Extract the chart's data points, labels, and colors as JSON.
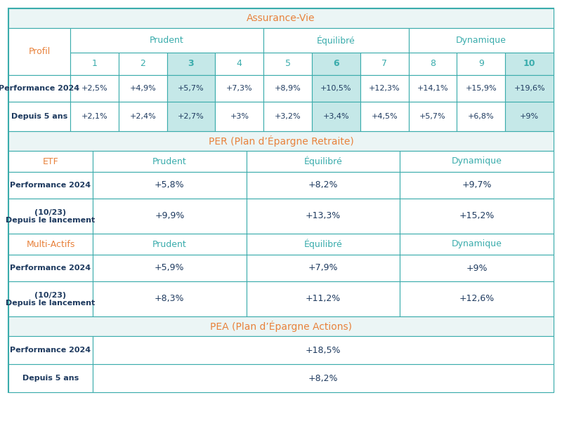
{
  "title_av": "Assurance-Vie",
  "title_per": "PER (Plan d’Épargne Retraite)",
  "title_pea": "PEA (Plan d’Épargne Actions)",
  "color_orange": "#E8823C",
  "color_teal": "#3AACAC",
  "color_navy": "#1E3A5F",
  "color_light_teal_bg": "#C5E8E8",
  "color_section_bg": "#EBF5F5",
  "color_border": "#3AACAC",
  "color_white": "#FFFFFF",
  "av_profils": [
    "1",
    "2",
    "3",
    "4",
    "5",
    "6",
    "7",
    "8",
    "9",
    "10"
  ],
  "av_perf2024": [
    "+2,5%",
    "+4,9%",
    "+5,7%",
    "+7,3%",
    "+8,9%",
    "+10,5%",
    "+12,3%",
    "+14,1%",
    "+15,9%",
    "+19,6%"
  ],
  "av_depuis5ans": [
    "+2,1%",
    "+2,4%",
    "+2,7%",
    "+3%",
    "+3,2%",
    "+3,4%",
    "+4,5%",
    "+5,7%",
    "+6,8%",
    "+9%"
  ],
  "av_highlight_cols": [
    2,
    5,
    9
  ],
  "per_etf_perf2024": [
    "+5,8%",
    "+8,2%",
    "+9,7%"
  ],
  "per_etf_lancement": [
    "+9,9%",
    "+13,3%",
    "+15,2%"
  ],
  "per_multi_perf2024": [
    "+5,9%",
    "+7,9%",
    "+9%"
  ],
  "per_multi_lancement": [
    "+8,3%",
    "+11,2%",
    "+12,6%"
  ],
  "pea_perf2024": "+18,5%",
  "pea_depuis5ans": "+8,2%",
  "labels_per": [
    "Prudent",
    "Équilibré",
    "Dynamique"
  ]
}
